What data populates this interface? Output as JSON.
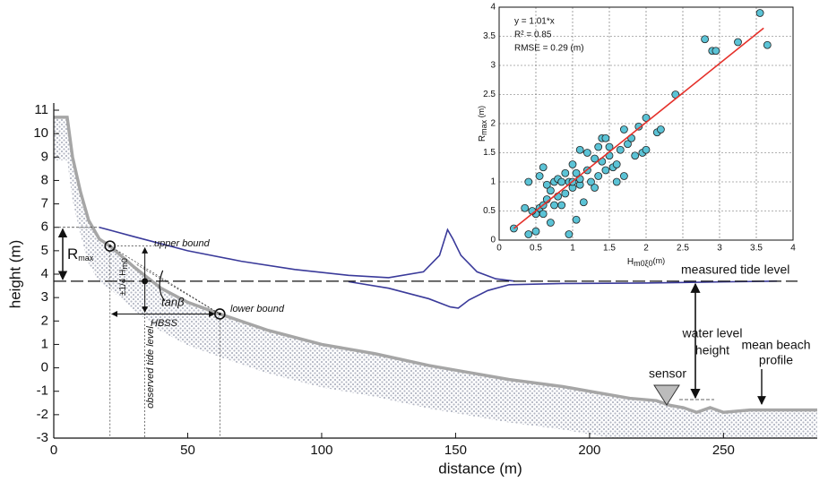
{
  "chart_data": [
    {
      "type": "line",
      "xlabel": "distance (m)",
      "ylabel": "height (m)",
      "xlim": [
        0,
        285
      ],
      "xticks": [
        0,
        50,
        100,
        150,
        200,
        250
      ],
      "ylim": [
        -3,
        11
      ],
      "yticks": [
        -3,
        -2,
        -1,
        0,
        1,
        2,
        3,
        4,
        5,
        6,
        7,
        8,
        9,
        10,
        11
      ],
      "series": [
        {
          "color": "#a6a6a6",
          "x": [
            0,
            5,
            7,
            10,
            13,
            17,
            21,
            30,
            40,
            50,
            62,
            80,
            100,
            120,
            140,
            150,
            170,
            190,
            200,
            215,
            225,
            230,
            235,
            240,
            245,
            250,
            260,
            270,
            280,
            285
          ],
          "values": [
            10.7,
            10.7,
            9,
            7.5,
            6.3,
            5.5,
            5.2,
            4.3,
            3.4,
            2.8,
            2.3,
            1.6,
            1.0,
            0.6,
            0.1,
            -0.1,
            -0.5,
            -0.8,
            -1.0,
            -1.3,
            -1.4,
            -1.6,
            -1.7,
            -1.9,
            -1.7,
            -1.9,
            -1.8,
            -1.8,
            -1.8,
            -1.8
          ]
        },
        {
          "color": "#3a3a9a",
          "x": [
            17,
            30,
            50,
            70,
            90,
            110,
            125,
            138,
            144,
            147,
            149,
            152,
            158,
            165,
            172
          ],
          "values": [
            6.0,
            5.6,
            5.0,
            4.55,
            4.2,
            3.95,
            3.85,
            4.1,
            4.8,
            5.9,
            5.5,
            4.8,
            4.1,
            3.8,
            3.7
          ]
        },
        {
          "color": "#3a3a9a",
          "x": [
            110,
            125,
            140,
            148,
            151,
            155,
            162,
            170,
            190,
            220,
            250,
            270
          ],
          "values": [
            3.68,
            3.4,
            2.95,
            2.6,
            2.55,
            2.9,
            3.3,
            3.55,
            3.6,
            3.62,
            3.67,
            3.7
          ]
        }
      ],
      "tide_level": 3.7,
      "markers": [
        {
          "x": 21,
          "y": 5.2
        },
        {
          "x": 62,
          "y": 2.3
        },
        {
          "x": 34,
          "y": 3.7
        }
      ],
      "annotations": {
        "rmax": {
          "main": "R",
          "sub": "max"
        },
        "upper": "upper bound",
        "lower": "lower bound",
        "hm0": {
          "main": "±1/4 H",
          "sub": "m0"
        },
        "tanb": "tanβ",
        "hbss": "HBSS",
        "observed": "observed tide level",
        "measured": "measured tide level",
        "water1": "water level",
        "water2": "height",
        "beach1": "mean beach",
        "beach2": "profile",
        "sensor": "sensor"
      }
    },
    {
      "type": "scatter",
      "xlabel": {
        "main": "H",
        "sub": "m0ξ0",
        "unit": "(m)"
      },
      "ylabel": {
        "main": "R",
        "sub": "max",
        "unit": "(m)"
      },
      "xlim": [
        0,
        4
      ],
      "xticks": [
        0,
        0.5,
        1,
        1.5,
        2,
        2.5,
        3,
        3.5,
        4
      ],
      "ylim": [
        0,
        4
      ],
      "yticks": [
        0,
        0.5,
        1,
        1.5,
        2,
        2.5,
        3,
        3.5,
        4
      ],
      "grid": true,
      "color": "#5bc3d6",
      "x": [
        0.2,
        0.35,
        0.4,
        0.4,
        0.5,
        0.5,
        0.55,
        0.6,
        0.6,
        0.6,
        0.65,
        0.65,
        0.7,
        0.7,
        0.75,
        0.75,
        0.8,
        0.8,
        0.85,
        0.85,
        0.9,
        0.9,
        0.95,
        0.95,
        1.0,
        1.0,
        1.0,
        1.05,
        1.1,
        1.1,
        1.15,
        1.2,
        1.2,
        1.25,
        1.3,
        1.3,
        1.35,
        1.35,
        1.4,
        1.4,
        1.45,
        1.5,
        1.5,
        1.55,
        1.6,
        1.6,
        1.65,
        1.7,
        1.7,
        1.75,
        1.8,
        1.85,
        1.9,
        1.95,
        2.0,
        2.0,
        2.15,
        2.2,
        2.4,
        2.8,
        2.9,
        3.25,
        3.55,
        3.65,
        1.45,
        0.55,
        0.45,
        1.1,
        1.05,
        2.95
      ],
      "y": [
        0.2,
        0.55,
        1.0,
        0.1,
        0.15,
        0.45,
        0.55,
        0.6,
        1.25,
        0.45,
        0.7,
        0.95,
        0.3,
        0.85,
        0.6,
        1.0,
        0.75,
        1.05,
        1.0,
        0.6,
        1.15,
        0.8,
        1.0,
        0.1,
        1.3,
        0.9,
        1.0,
        0.35,
        0.95,
        1.05,
        0.65,
        1.5,
        1.2,
        1.0,
        1.4,
        0.9,
        1.6,
        1.1,
        1.35,
        1.75,
        1.2,
        1.6,
        1.45,
        1.25,
        1.0,
        1.3,
        1.55,
        1.9,
        1.1,
        1.65,
        1.75,
        1.45,
        1.95,
        1.5,
        2.1,
        1.55,
        1.85,
        1.9,
        2.5,
        3.45,
        3.25,
        3.4,
        3.9,
        3.35,
        1.75,
        1.1,
        0.5,
        1.55,
        1.15,
        3.25
      ],
      "fit": {
        "color": "#e5302a",
        "x": [
          0.2,
          3.6
        ],
        "y": [
          0.2,
          3.64
        ]
      },
      "stats": [
        "y = 1.01*x",
        "R² = 0.85",
        "RMSE = 0.29 (m)"
      ]
    }
  ]
}
